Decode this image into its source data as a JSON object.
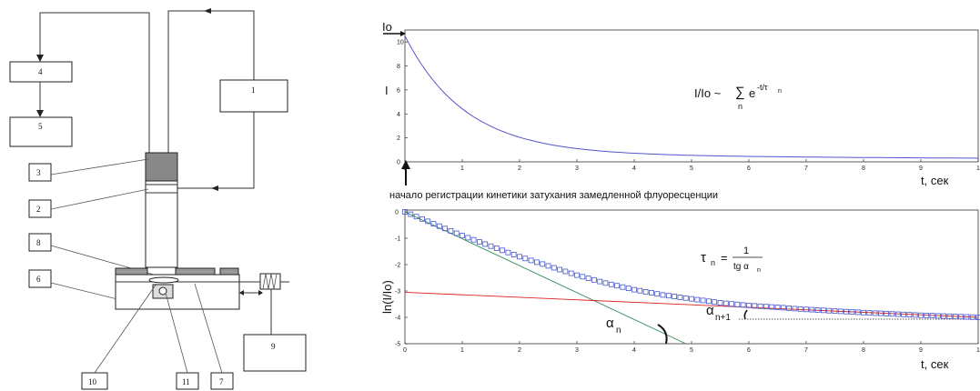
{
  "apparatus": {
    "labels": [
      "1",
      "2",
      "3",
      "4",
      "5",
      "6",
      "7",
      "8",
      "9",
      "10",
      "11"
    ]
  },
  "top_plot": {
    "y_axis_label": "I",
    "y_start_label": "Io",
    "x_axis_label": "t, сек",
    "formula_left": "I/Io ~",
    "formula_sum": "∑",
    "formula_sum_index": "n",
    "formula_e": "e",
    "formula_exp": "-t/τ",
    "formula_exp_sub": "n",
    "caption": "начало регистрации кинетики затухания замедленной флуоресценции",
    "y_ticks": [
      "0",
      "2",
      "4",
      "6",
      "8",
      "10"
    ],
    "x_ticks": [
      "0",
      "1",
      "2",
      "3",
      "4",
      "5",
      "6",
      "7",
      "8",
      "9",
      "1"
    ]
  },
  "bottom_plot": {
    "y_axis_label": "ln(I/Io)",
    "x_axis_label": "t, сек",
    "formula_tau": "τ",
    "formula_tau_sub": "n",
    "formula_eq": "=",
    "formula_num": "1",
    "formula_den": "tg α",
    "formula_den_sub": "n",
    "alpha_n": "α",
    "alpha_n_sub": "n",
    "alpha_n1": "α",
    "alpha_n1_sub": "n+1",
    "y_ticks": [
      "0",
      "-1",
      "-2",
      "-3",
      "-4",
      "-5"
    ],
    "x_ticks": [
      "0",
      "1",
      "2",
      "3",
      "4",
      "5",
      "6",
      "7",
      "8",
      "9",
      "1"
    ]
  },
  "chart_data": [
    {
      "type": "line",
      "ylabel": "I",
      "xlabel": "t, сек",
      "xlim": [
        0,
        10
      ],
      "ylim": [
        0,
        11
      ],
      "series": [
        {
          "color": "#5555cc",
          "x": [
            0,
            0.5,
            1,
            1.5,
            2,
            2.5,
            3,
            3.5,
            4,
            5,
            6,
            7,
            8,
            9,
            10
          ],
          "y": [
            10.5,
            6.6,
            4.2,
            2.8,
            1.9,
            1.4,
            1.05,
            0.85,
            0.72,
            0.55,
            0.45,
            0.38,
            0.32,
            0.27,
            0.22
          ]
        }
      ]
    },
    {
      "type": "scatter",
      "ylabel": "ln(I/Io)",
      "xlabel": "t, сек",
      "xlim": [
        0,
        10
      ],
      "ylim": [
        -5,
        0
      ],
      "series": [
        {
          "marker": "square",
          "color": "#4455cc",
          "x": [
            0,
            0.5,
            1,
            1.5,
            2,
            2.5,
            3,
            3.5,
            4,
            4.5,
            5,
            5.5,
            6,
            6.5,
            7,
            7.5,
            8,
            8.5,
            9,
            9.5,
            10
          ],
          "y": [
            0,
            -0.45,
            -0.9,
            -1.3,
            -1.7,
            -2.05,
            -2.4,
            -2.7,
            -2.95,
            -3.15,
            -3.3,
            -3.45,
            -3.55,
            -3.62,
            -3.7,
            -3.76,
            -3.82,
            -3.87,
            -3.92,
            -3.96,
            -4.0
          ]
        },
        {
          "type": "line",
          "color": "#2e8b57",
          "x": [
            0,
            4.9
          ],
          "y": [
            0,
            -5
          ]
        },
        {
          "type": "line",
          "color": "#dd2222",
          "x": [
            0,
            10
          ],
          "y": [
            -3.05,
            -4.0
          ]
        }
      ]
    }
  ]
}
